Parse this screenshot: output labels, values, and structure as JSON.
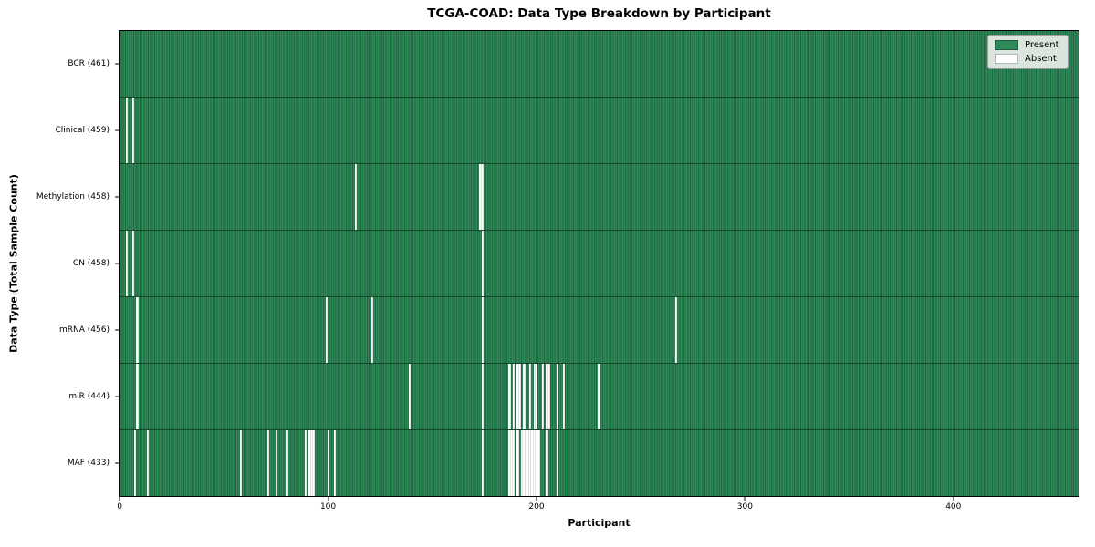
{
  "chart_data": {
    "type": "heatmap",
    "title": "TCGA-COAD: Data Type Breakdown by Participant",
    "xlabel": "Participant",
    "ylabel": "Data Type (Total Sample Count)",
    "n_participants": 461,
    "x_ticks": [
      0,
      100,
      200,
      300,
      400
    ],
    "legend_position": "upper right",
    "grid": false,
    "colors": {
      "present": "#2e8b57",
      "present_edge": "#216543",
      "absent": "#ffffff",
      "legend_bg": "#eaeeea",
      "legend_border": "#9a9a9a"
    },
    "legend_entries": [
      {
        "label": "Present",
        "swatch": "present"
      },
      {
        "label": "Absent",
        "swatch": "absent"
      }
    ],
    "rows": [
      {
        "name": "BCR",
        "label": "BCR (461)",
        "total": 461,
        "absent_participants": []
      },
      {
        "name": "Clinical",
        "label": "Clinical (459)",
        "total": 459,
        "absent_participants": [
          3,
          6
        ]
      },
      {
        "name": "Methylation",
        "label": "Methylation (458)",
        "total": 458,
        "absent_participants": [
          113,
          173,
          174
        ]
      },
      {
        "name": "CN",
        "label": "CN (458)",
        "total": 458,
        "absent_participants": [
          3,
          6,
          174
        ]
      },
      {
        "name": "mRNA",
        "label": "mRNA (456)",
        "total": 456,
        "absent_participants": [
          8,
          99,
          121,
          174,
          267
        ]
      },
      {
        "name": "miR",
        "label": "miR (444)",
        "total": 444,
        "absent_participants": [
          8,
          139,
          174,
          187,
          189,
          191,
          192,
          194,
          197,
          199,
          200,
          203,
          205,
          206,
          210,
          213,
          230
        ]
      },
      {
        "name": "MAF",
        "label": "MAF (433)",
        "total": 433,
        "absent_participants": [
          7,
          13,
          58,
          71,
          75,
          80,
          89,
          91,
          92,
          93,
          100,
          103,
          174,
          187,
          188,
          189,
          191,
          193,
          194,
          195,
          196,
          197,
          198,
          199,
          200,
          201,
          205,
          210
        ]
      }
    ]
  }
}
